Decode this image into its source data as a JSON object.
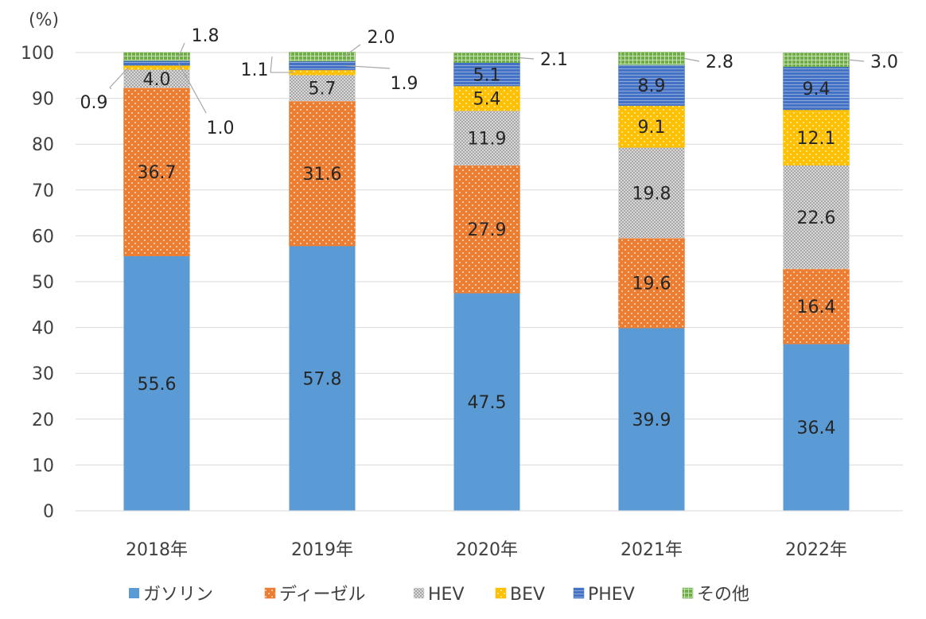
{
  "chart_data": {
    "type": "bar",
    "stacked": true,
    "unit_label": "(%)",
    "ylim": [
      0,
      100
    ],
    "yticks": [
      0,
      10,
      20,
      30,
      40,
      50,
      60,
      70,
      80,
      90,
      100
    ],
    "grid": true,
    "legend_position": "bottom",
    "categories": [
      "2018年",
      "2019年",
      "2020年",
      "2021年",
      "2022年"
    ],
    "series": [
      {
        "name": "ガソリン",
        "color": "#5b9bd5",
        "pattern": "solid",
        "values": [
          55.6,
          57.8,
          47.5,
          39.9,
          36.4
        ]
      },
      {
        "name": "ディーゼル",
        "color": "#ed7d31",
        "pattern": "dots",
        "values": [
          36.7,
          31.6,
          27.9,
          19.6,
          16.4
        ]
      },
      {
        "name": "HEV",
        "color": "#d9d9d9",
        "pattern": "checker",
        "values": [
          4.0,
          5.7,
          11.9,
          19.8,
          22.6
        ]
      },
      {
        "name": "BEV",
        "color": "#ffc000",
        "pattern": "dots",
        "values": [
          0.9,
          1.1,
          5.4,
          9.1,
          12.1
        ]
      },
      {
        "name": "PHEV",
        "color": "#4472c4",
        "pattern": "lines",
        "values": [
          1.0,
          1.9,
          5.1,
          8.9,
          9.4
        ]
      },
      {
        "name": "その他",
        "color": "#70ad47",
        "pattern": "grid",
        "values": [
          1.8,
          2.0,
          2.1,
          2.8,
          3.0
        ]
      }
    ],
    "value_labels": [
      [
        "55.6",
        "36.7",
        "4.0",
        "0.9",
        "1.0",
        "1.8"
      ],
      [
        "57.8",
        "31.6",
        "5.7",
        "1.1",
        "1.9",
        "2.0"
      ],
      [
        "47.5",
        "27.9",
        "11.9",
        "5.4",
        "5.1",
        "2.1"
      ],
      [
        "39.9",
        "19.6",
        "19.8",
        "9.1",
        "8.9",
        "2.8"
      ],
      [
        "36.4",
        "16.4",
        "22.6",
        "12.1",
        "9.4",
        "3.0"
      ]
    ]
  }
}
